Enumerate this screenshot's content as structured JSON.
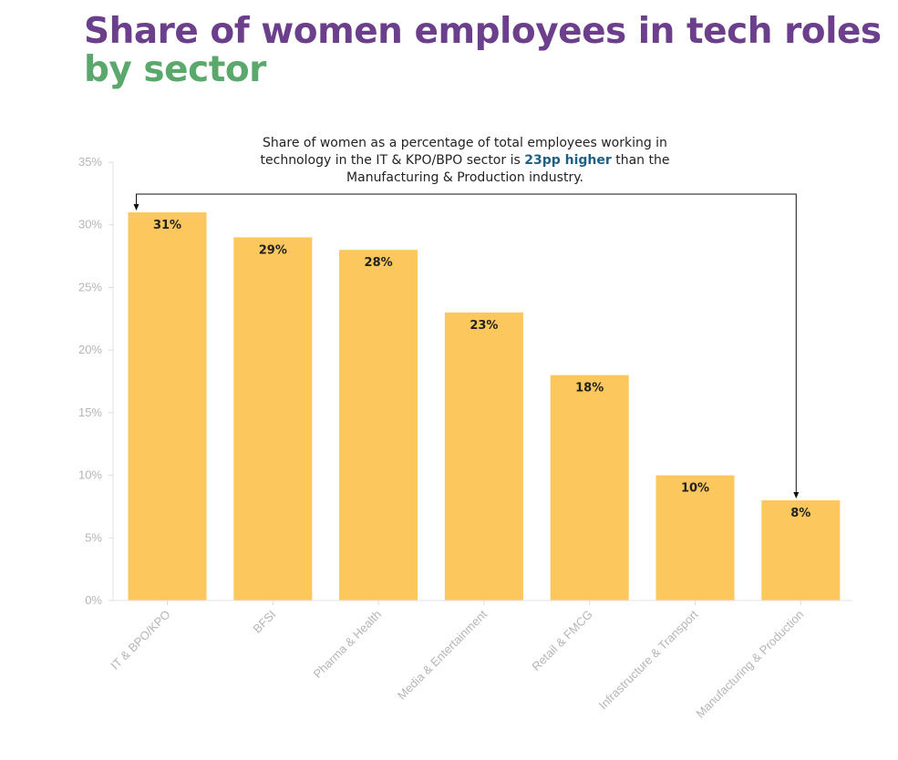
{
  "title": {
    "part1": "Share of women employees in tech roles ",
    "part2": "by sector"
  },
  "annotation": {
    "before": "Share of women as a percentage of total employees working in technology in the IT & KPO/BPO sector is ",
    "highlight": "23pp higher",
    "after": " than the Manufacturing & Production industry."
  },
  "colors": {
    "title": "#6b3f8c",
    "title_accent": "#5aa86c",
    "bar": "#fcc75c",
    "highlight": "#1f5f86"
  },
  "chart_data": {
    "type": "bar",
    "categories": [
      "IT & BPO/KPO",
      "BFSI",
      "Pharma & Health",
      "Media & Entertainment",
      "Retail & FMCG",
      "Infrastructure & Transport",
      "Manufacturing & Production"
    ],
    "values": [
      31,
      29,
      28,
      23,
      18,
      10,
      8
    ],
    "data_labels": [
      "31%",
      "29%",
      "28%",
      "23%",
      "18%",
      "10%",
      "8%"
    ],
    "ylim": [
      0,
      35
    ],
    "yticks": [
      0,
      5,
      10,
      15,
      20,
      25,
      30,
      35
    ],
    "ytick_labels": [
      "0%",
      "5%",
      "10%",
      "15%",
      "20%",
      "25%",
      "30%",
      "35%"
    ],
    "grid": false
  }
}
